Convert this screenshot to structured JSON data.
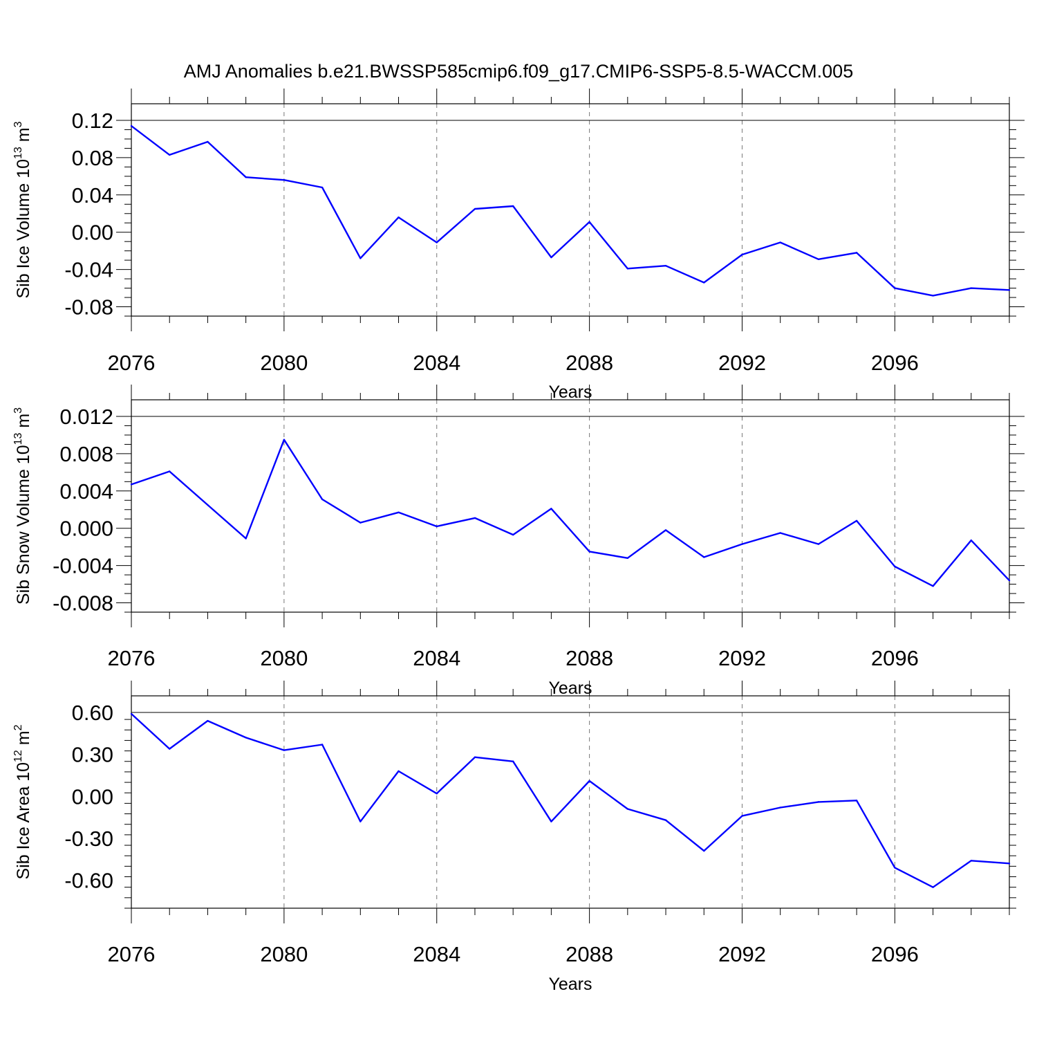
{
  "title": "AMJ Anomalies b.e21.BWSSP585cmip6.f09_g17.CMIP6-SSP5-8.5-WACCM.005",
  "line_color": "#0000ff",
  "chart_data": [
    {
      "type": "line",
      "ylabel": {
        "text": "Sib Ice Volume 10",
        "exp": "13",
        "unit": " m",
        "unit_exp": "3"
      },
      "xlabel": "Years",
      "xlim": [
        2076,
        2099
      ],
      "ylim": [
        -0.09,
        0.12
      ],
      "xticks": [
        2076,
        2080,
        2084,
        2088,
        2092,
        2096
      ],
      "xtick_labels": [
        "2076",
        "2080",
        "2084",
        "2088",
        "2092",
        "2096"
      ],
      "yticks": [
        0.12,
        0.08,
        0.04,
        0.0,
        -0.04,
        -0.08
      ],
      "ytick_labels": [
        "0.12",
        "0.08",
        "0.04",
        "0.00",
        "-0.04",
        "-0.08"
      ],
      "grid": "x-dashed",
      "x": [
        2076,
        2077,
        2078,
        2079,
        2080,
        2081,
        2082,
        2083,
        2084,
        2085,
        2086,
        2087,
        2088,
        2089,
        2090,
        2091,
        2092,
        2093,
        2094,
        2095,
        2096,
        2097,
        2098,
        2099
      ],
      "y": [
        0.114,
        0.083,
        0.097,
        0.059,
        0.056,
        0.048,
        -0.028,
        0.016,
        -0.011,
        0.025,
        0.028,
        -0.027,
        0.011,
        -0.039,
        -0.036,
        -0.054,
        -0.024,
        -0.011,
        -0.029,
        -0.022,
        -0.06,
        -0.068,
        -0.06,
        -0.062
      ]
    },
    {
      "type": "line",
      "ylabel": {
        "text": "Sib Snow Volume 10",
        "exp": "13",
        "unit": " m",
        "unit_exp": "3"
      },
      "xlabel": "Years",
      "xlim": [
        2076,
        2099
      ],
      "ylim": [
        -0.009,
        0.012
      ],
      "xticks": [
        2076,
        2080,
        2084,
        2088,
        2092,
        2096
      ],
      "xtick_labels": [
        "2076",
        "2080",
        "2084",
        "2088",
        "2092",
        "2096"
      ],
      "yticks": [
        0.012,
        0.008,
        0.004,
        0.0,
        -0.004,
        -0.008
      ],
      "ytick_labels": [
        "0.012",
        "0.008",
        "0.004",
        "0.000",
        "-0.004",
        "-0.008"
      ],
      "grid": "x-dashed",
      "x": [
        2076,
        2077,
        2078,
        2079,
        2080,
        2081,
        2082,
        2083,
        2084,
        2085,
        2086,
        2087,
        2088,
        2089,
        2090,
        2091,
        2092,
        2093,
        2094,
        2095,
        2096,
        2097,
        2098,
        2099
      ],
      "y": [
        0.0047,
        0.0061,
        0.0025,
        -0.0011,
        0.0095,
        0.0031,
        0.0006,
        0.0017,
        0.0002,
        0.0011,
        -0.0007,
        0.0021,
        -0.0025,
        -0.0032,
        -0.0002,
        -0.0031,
        -0.0017,
        -0.0005,
        -0.0017,
        0.0008,
        -0.0041,
        -0.0062,
        -0.0013,
        -0.0056
      ]
    },
    {
      "type": "line",
      "ylabel": {
        "text": "Sib Ice Area 10",
        "exp": "12",
        "unit": " m",
        "unit_exp": "2"
      },
      "xlabel": "Years",
      "xlim": [
        2076,
        2099
      ],
      "ylim": [
        -0.8,
        0.6
      ],
      "xticks": [
        2076,
        2080,
        2084,
        2088,
        2092,
        2096
      ],
      "xtick_labels": [
        "2076",
        "2080",
        "2084",
        "2088",
        "2092",
        "2096"
      ],
      "yticks": [
        0.6,
        0.3,
        0.0,
        -0.3,
        -0.6
      ],
      "ytick_labels": [
        "0.60",
        "0.30",
        "0.00",
        "-0.30",
        "-0.60"
      ],
      "grid": "x-dashed",
      "x": [
        2076,
        2077,
        2078,
        2079,
        2080,
        2081,
        2082,
        2083,
        2084,
        2085,
        2086,
        2087,
        2088,
        2089,
        2090,
        2091,
        2092,
        2093,
        2094,
        2095,
        2096,
        2097,
        2098,
        2099
      ],
      "y": [
        0.59,
        0.34,
        0.54,
        0.42,
        0.33,
        0.37,
        -0.18,
        0.18,
        0.02,
        0.28,
        0.25,
        -0.18,
        0.11,
        -0.09,
        -0.17,
        -0.39,
        -0.14,
        -0.08,
        -0.04,
        -0.03,
        -0.51,
        -0.65,
        -0.46,
        -0.48
      ]
    }
  ]
}
